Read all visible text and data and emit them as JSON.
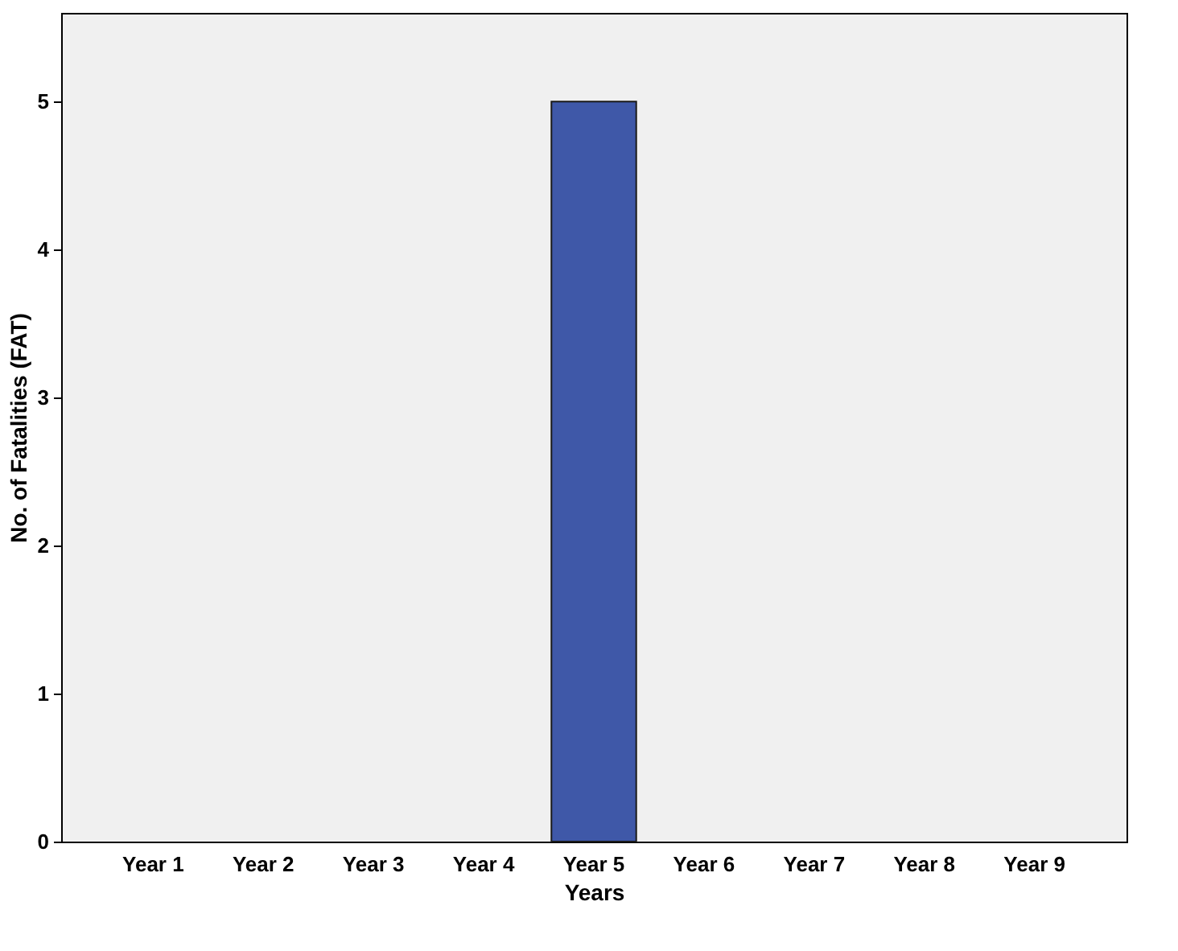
{
  "chart_data": {
    "type": "bar",
    "xlabel": "Years",
    "ylabel": "No. of Fatalities (FAT)",
    "categories": [
      "Year 1",
      "Year 2",
      "Year 3",
      "Year 4",
      "Year 5",
      "Year 6",
      "Year 7",
      "Year 8",
      "Year 9"
    ],
    "values": [
      0,
      0,
      0,
      0,
      5,
      0,
      0,
      0,
      0
    ],
    "color": "#3f58a8",
    "ylim": [
      0,
      5.6
    ],
    "yticks": [
      0,
      1,
      2,
      3,
      4,
      5
    ],
    "grid": false
  }
}
